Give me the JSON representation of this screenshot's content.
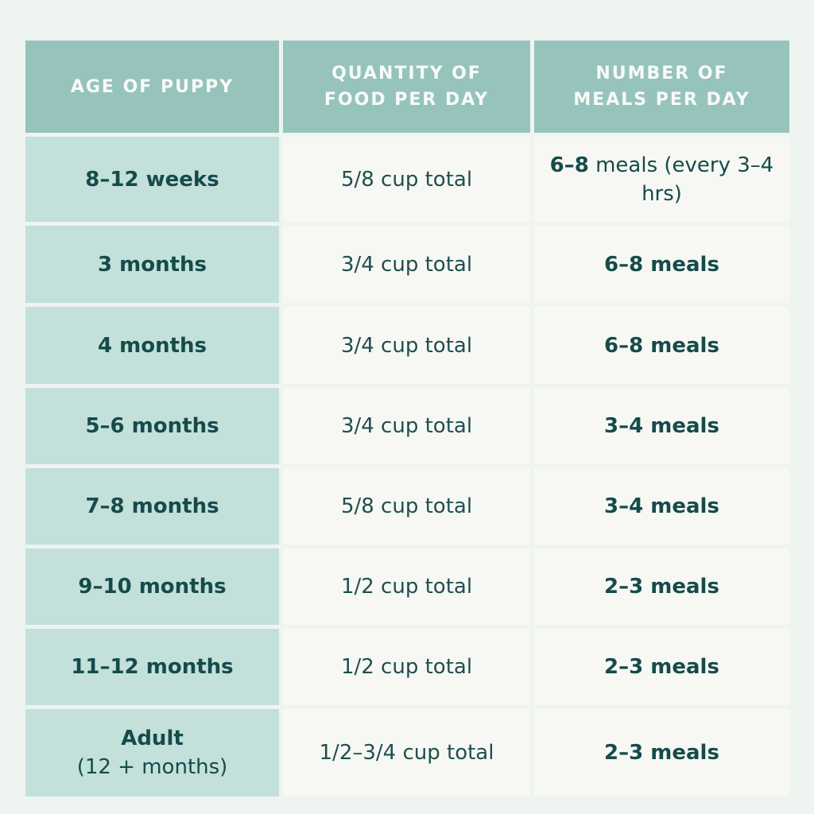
{
  "header": {
    "age": "AGE OF PUPPY",
    "quantity_line1": "QUANTITY OF",
    "quantity_line2": "FOOD PER DAY",
    "meals_line1": "NUMBER OF",
    "meals_line2": "MEALS PER DAY"
  },
  "rows": [
    {
      "age": "8–12 weeks",
      "quantity": "5/8 cup total",
      "meals_bold": "6–8",
      "meals_rest": " meals (every 3–4 hrs)"
    },
    {
      "age": "3 months",
      "quantity": "3/4 cup total",
      "meals": "6–8 meals"
    },
    {
      "age": "4 months",
      "quantity": "3/4 cup total",
      "meals": "6–8 meals"
    },
    {
      "age": "5–6 months",
      "quantity": "3/4 cup total",
      "meals": "3–4 meals"
    },
    {
      "age": "7–8 months",
      "quantity": "5/8 cup total",
      "meals": "3–4 meals"
    },
    {
      "age": "9–10 months",
      "quantity": "1/2 cup total",
      "meals": "2–3 meals"
    },
    {
      "age": "11–12 months",
      "quantity": "1/2 cup total",
      "meals": "2–3 meals"
    },
    {
      "age": "Adult",
      "age_sub": "(12 + months)",
      "quantity": "1/2–3/4 cup total",
      "meals": "2–3 meals"
    }
  ],
  "colors": {
    "page_background": "#eef4ef",
    "header_background": "#97c3bd",
    "age_column_background": "#c3e0da",
    "cell_background": "#f7f8f3",
    "text": "#154b4b"
  }
}
